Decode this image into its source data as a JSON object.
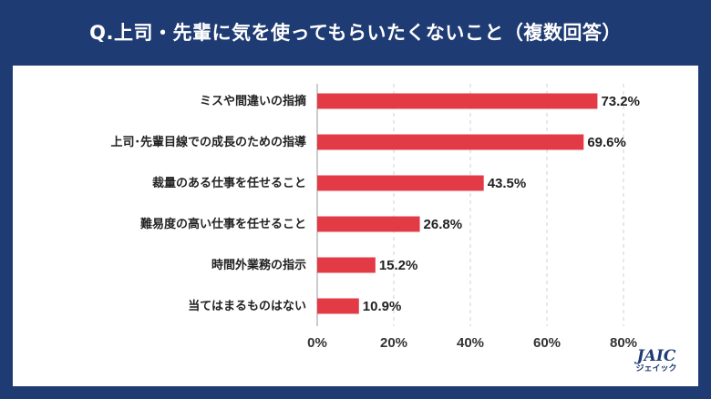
{
  "header": {
    "title": "Q.上司・先輩に気を使ってもらいたくないこと（複数回答）"
  },
  "logo": {
    "name": "JAIC",
    "subtitle": "ジェイック"
  },
  "colors": {
    "background": "#1f3b73",
    "bar": "#e23b46",
    "grid": "#d0d0d0"
  },
  "chart_data": {
    "type": "bar",
    "orientation": "horizontal",
    "title": "Q.上司・先輩に気を使ってもらいたくないこと（複数回答）",
    "categories": [
      "ミスや間違いの指摘",
      "上司･先輩目線での成長のための指導",
      "裁量のある仕事を任せること",
      "難易度の高い仕事を任せること",
      "時間外業務の指示",
      "当てはまるものはない"
    ],
    "values": [
      73.2,
      69.6,
      43.5,
      26.8,
      15.2,
      10.9
    ],
    "value_labels": [
      "73.2%",
      "69.6%",
      "43.5%",
      "26.8%",
      "15.2%",
      "10.9%"
    ],
    "xlim": [
      0,
      80
    ],
    "xticks": [
      0,
      20,
      40,
      60,
      80
    ],
    "xtick_labels": [
      "0%",
      "20%",
      "40%",
      "60%",
      "80%"
    ],
    "xlabel": "",
    "ylabel": "",
    "grid": true
  }
}
